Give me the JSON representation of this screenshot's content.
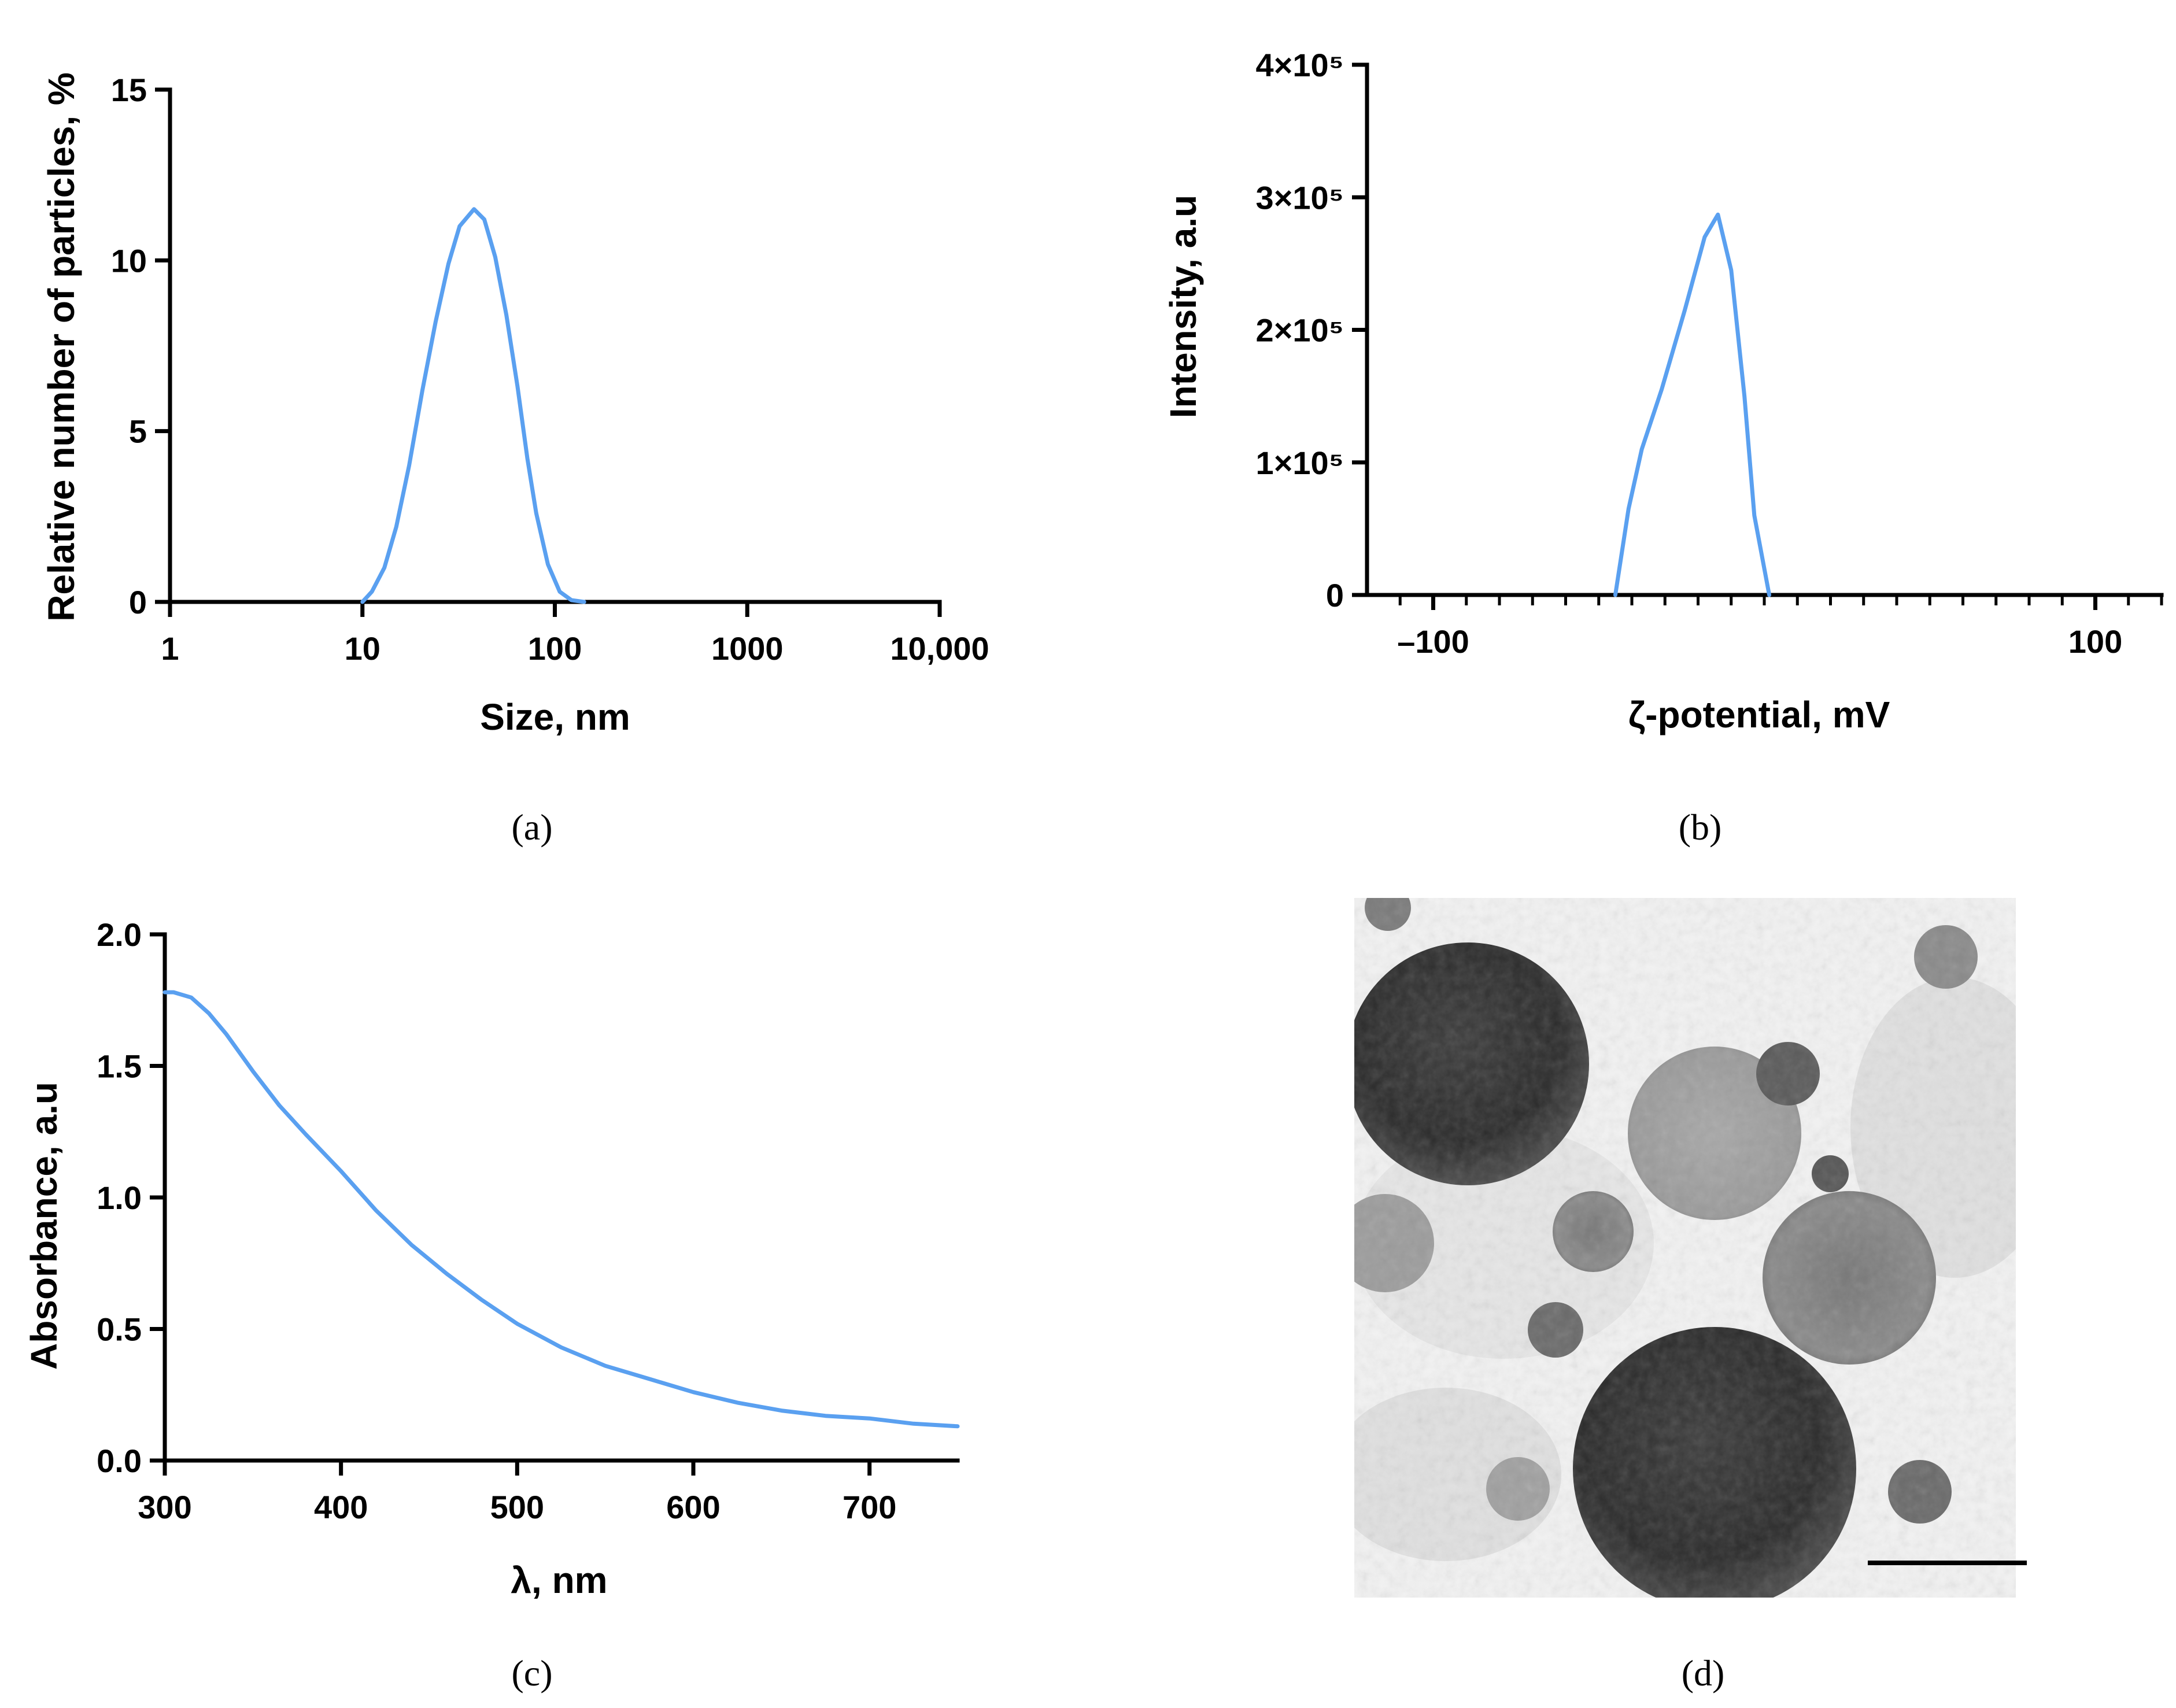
{
  "panels": [
    {
      "id": "a",
      "label": "(a)"
    },
    {
      "id": "b",
      "label": "(b)"
    },
    {
      "id": "c",
      "label": "(c)"
    },
    {
      "id": "d",
      "label": "(d)"
    }
  ],
  "colors": {
    "series": "#5aa0f0",
    "axis": "#000000"
  },
  "micrograph": {
    "panel": "d",
    "has_scale_bar": true
  },
  "chart_data": [
    {
      "id": "a",
      "type": "line",
      "xscale": "log",
      "xlabel": "Size, nm",
      "ylabel": "Relative number of particles, %",
      "xlim": [
        1,
        10000
      ],
      "ylim": [
        0,
        15
      ],
      "xticks": [
        1,
        10,
        100,
        1000,
        10000
      ],
      "xtick_labels": [
        "1",
        "10",
        "100",
        "1000",
        "10,000"
      ],
      "yticks": [
        0,
        5,
        10,
        15
      ],
      "ytick_labels": [
        "0",
        "5",
        "10",
        "15"
      ],
      "grid": false,
      "legend": "none",
      "x": [
        10,
        11.2,
        13,
        15,
        17.5,
        20.5,
        24,
        28,
        32,
        38,
        43,
        49,
        56,
        64,
        72,
        80,
        92,
        106,
        122,
        142
      ],
      "y": [
        0,
        0.3,
        1.0,
        2.2,
        4.0,
        6.2,
        8.2,
        9.9,
        11.0,
        11.5,
        11.2,
        10.1,
        8.4,
        6.3,
        4.2,
        2.6,
        1.1,
        0.3,
        0.05,
        0
      ]
    },
    {
      "id": "b",
      "type": "line",
      "xlabel": "ζ-potential, mV",
      "ylabel": "Intensity, a.u",
      "xlim": [
        -120,
        120
      ],
      "ylim": [
        0,
        400000
      ],
      "xticks": [
        -100,
        100
      ],
      "xtick_labels": [
        "–100",
        "100"
      ],
      "x_minor_step": 10,
      "yticks": [
        0,
        100000,
        200000,
        300000,
        400000
      ],
      "ytick_labels": [
        "0",
        "1×10⁵",
        "2×10⁵",
        "3×10⁵",
        "4×10⁵"
      ],
      "grid": false,
      "legend": "none",
      "x": [
        -45,
        -41,
        -37,
        -31,
        -24,
        -18,
        -14,
        -10,
        -6,
        -3,
        1.5
      ],
      "y": [
        0,
        65000,
        110000,
        155000,
        215000,
        270000,
        287000,
        245000,
        150000,
        60000,
        0
      ]
    },
    {
      "id": "c",
      "type": "line",
      "xlabel": "λ, nm",
      "ylabel": "Absorbance, a.u",
      "xlim": [
        300,
        750
      ],
      "ylim": [
        0,
        2.0
      ],
      "xticks": [
        300,
        400,
        500,
        600,
        700
      ],
      "xtick_labels": [
        "300",
        "400",
        "500",
        "600",
        "700"
      ],
      "yticks": [
        0,
        0.5,
        1.0,
        1.5,
        2.0
      ],
      "ytick_labels": [
        "0.0",
        "0.5",
        "1.0",
        "1.5",
        "2.0"
      ],
      "grid": false,
      "legend": "none",
      "x": [
        300,
        305,
        315,
        325,
        335,
        350,
        365,
        380,
        400,
        420,
        440,
        460,
        480,
        500,
        525,
        550,
        575,
        600,
        625,
        650,
        675,
        700,
        725,
        750
      ],
      "y": [
        1.78,
        1.78,
        1.76,
        1.7,
        1.62,
        1.48,
        1.35,
        1.24,
        1.1,
        0.95,
        0.82,
        0.71,
        0.61,
        0.52,
        0.43,
        0.36,
        0.31,
        0.26,
        0.22,
        0.19,
        0.17,
        0.16,
        0.14,
        0.13
      ]
    }
  ]
}
